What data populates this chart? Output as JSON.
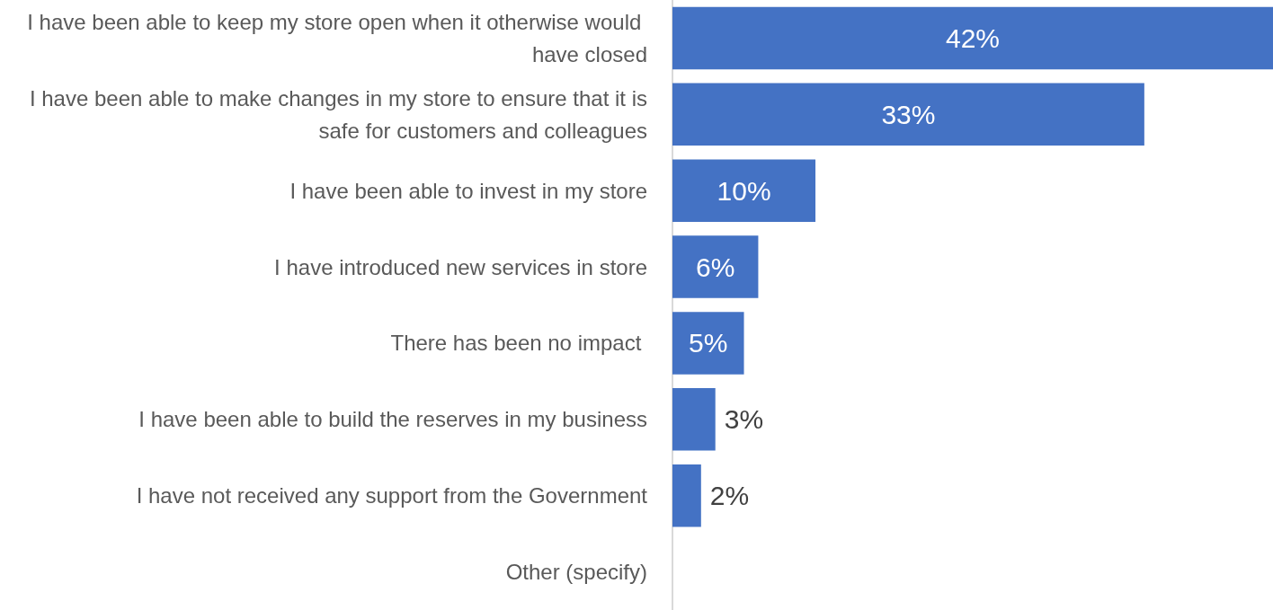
{
  "chart_data": {
    "type": "bar",
    "orientation": "horizontal",
    "categories": [
      "I have been able to keep my store open when it otherwise would have closed",
      "I have been able to make changes in my store to ensure that it is safe for customers and colleagues",
      "I have been able to invest in my store",
      "I have introduced new services in store",
      "There has been no impact ",
      "I have been able to build the reserves in my business",
      "I have not received any support from the Government",
      "Other (specify)"
    ],
    "values": [
      42,
      33,
      10,
      6,
      5,
      3,
      2,
      null
    ],
    "value_labels": [
      "42%",
      "33%",
      "10%",
      "6%",
      "5%",
      "3%",
      "2%",
      null
    ],
    "color": "#4472c4"
  }
}
